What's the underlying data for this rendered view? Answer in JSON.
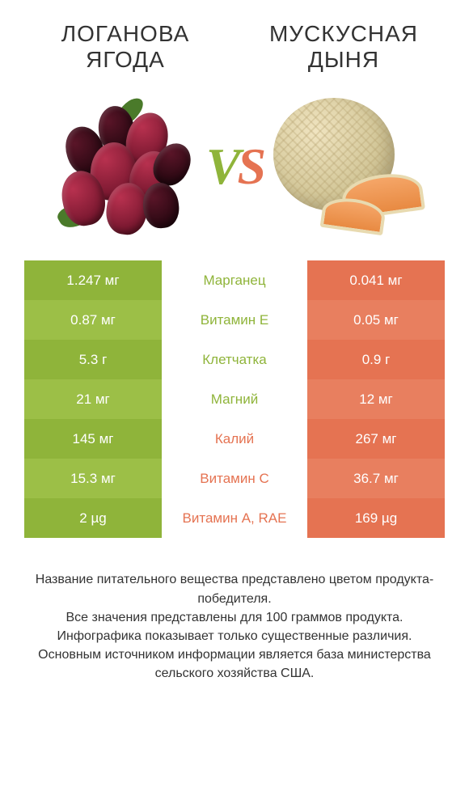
{
  "left_title_line1": "ЛОГАНОВА",
  "left_title_line2": "ЯГОДА",
  "right_title_line1": "МУСКУСНАЯ",
  "right_title_line2": "ДЫНЯ",
  "vs_v": "V",
  "vs_s": "S",
  "colors": {
    "left_a": "#8fb43a",
    "left_b": "#9cbf47",
    "right_a": "#e57352",
    "right_b": "#e87f5f",
    "winner_left": "#8fb43a",
    "winner_right": "#e57352",
    "text_dark": "#333333",
    "bg": "#ffffff"
  },
  "rows": [
    {
      "left": "1.247 мг",
      "mid": "Марганец",
      "right": "0.041 мг",
      "winner": "left"
    },
    {
      "left": "0.87 мг",
      "mid": "Витамин E",
      "right": "0.05 мг",
      "winner": "left"
    },
    {
      "left": "5.3 г",
      "mid": "Клетчатка",
      "right": "0.9 г",
      "winner": "left"
    },
    {
      "left": "21 мг",
      "mid": "Магний",
      "right": "12 мг",
      "winner": "left"
    },
    {
      "left": "145 мг",
      "mid": "Калий",
      "right": "267 мг",
      "winner": "right"
    },
    {
      "left": "15.3 мг",
      "mid": "Витамин C",
      "right": "36.7 мг",
      "winner": "right"
    },
    {
      "left": "2 µg",
      "mid": "Витамин A, RAE",
      "right": "169 µg",
      "winner": "right"
    }
  ],
  "footer_lines": [
    "Название питательного вещества представлено цветом продукта-победителя.",
    "Все значения представлены для 100 граммов продукта.",
    "Инфографика показывает только существенные различия.",
    "Основным источником информации является база министерства сельского хозяйства США."
  ]
}
